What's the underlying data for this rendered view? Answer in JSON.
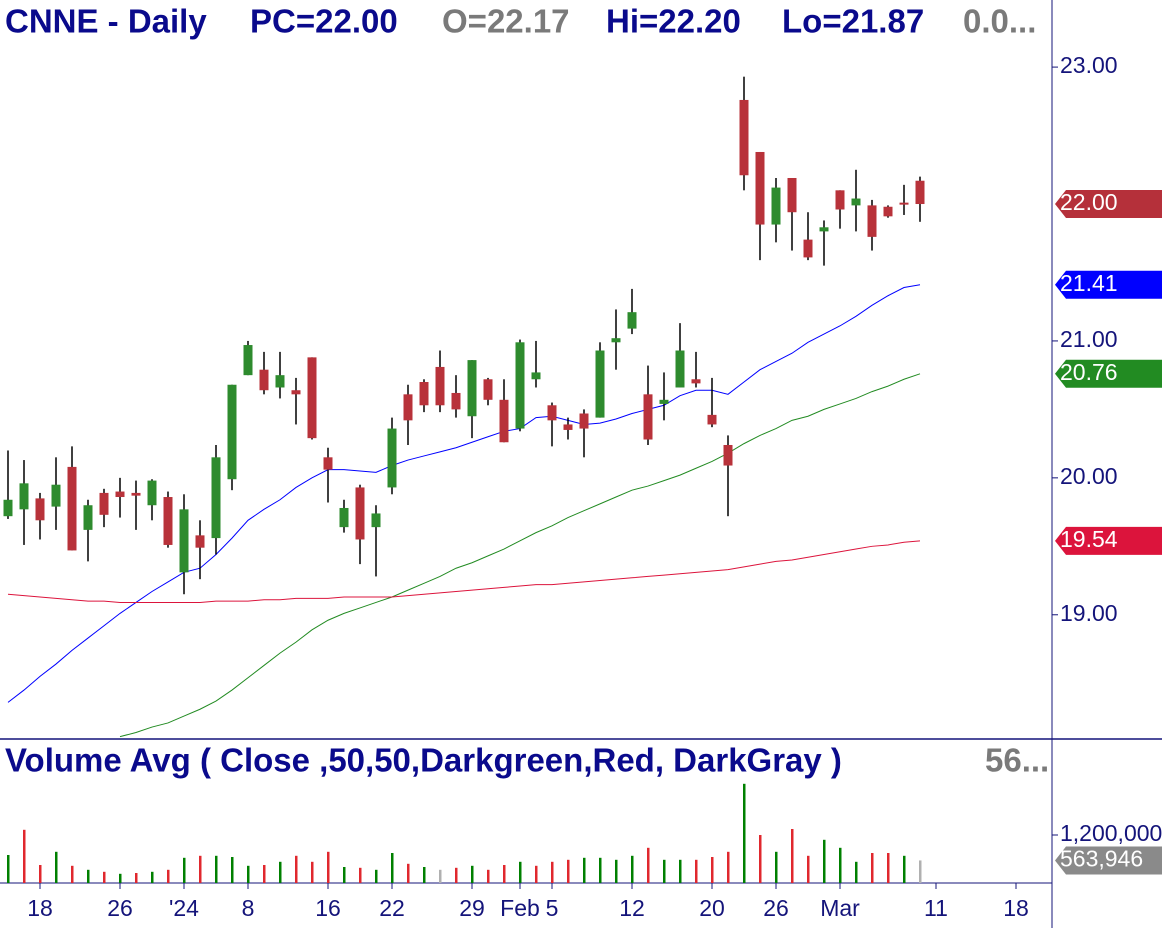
{
  "chart_data": {
    "type": "candlestick",
    "header": {
      "symbol": "CNNE - Daily",
      "prev_close": "PC=22.00",
      "open": "O=22.17",
      "high": "Hi=22.20",
      "low": "Lo=21.87",
      "change": "0.0..."
    },
    "categories": [
      null,
      null,
      "18",
      null,
      null,
      null,
      null,
      "26",
      null,
      null,
      null,
      "'24",
      null,
      null,
      null,
      "8",
      null,
      null,
      null,
      null,
      "16",
      null,
      null,
      null,
      "22",
      null,
      null,
      null,
      null,
      "29",
      null,
      null,
      "Feb",
      null,
      "5",
      null,
      null,
      null,
      null,
      "12",
      null,
      null,
      null,
      null,
      "20",
      null,
      null,
      null,
      "26",
      null,
      null,
      null,
      "Mar",
      null,
      null,
      null,
      null,
      null,
      "11",
      null,
      null,
      null,
      null,
      "18"
    ],
    "open": [
      19.72,
      19.77,
      19.85,
      19.79,
      20.08,
      19.62,
      19.89,
      19.9,
      19.89,
      19.8,
      19.86,
      19.31,
      19.58,
      19.56,
      19.99,
      20.75,
      20.79,
      20.66,
      20.64,
      20.88,
      20.15,
      19.64,
      19.93,
      19.64,
      19.93,
      20.61,
      20.7,
      20.81,
      20.62,
      20.45,
      20.72,
      20.57,
      20.36,
      20.72,
      20.53,
      20.39,
      20.47,
      20.44,
      20.99,
      21.09,
      20.61,
      20.54,
      20.66,
      20.72,
      20.46,
      20.24,
      22.76,
      22.38,
      21.85,
      22.19,
      21.74,
      21.8,
      22.1,
      21.99,
      21.99,
      21.98,
      22.01,
      22.17,
      null,
      null,
      null,
      null,
      null,
      null
    ],
    "high": [
      20.2,
      20.13,
      19.89,
      20.15,
      20.23,
      19.84,
      19.92,
      20.0,
      19.98,
      19.99,
      19.9,
      19.88,
      19.69,
      20.24,
      20.68,
      21.0,
      20.92,
      20.92,
      20.73,
      20.88,
      20.22,
      19.84,
      19.95,
      19.8,
      20.44,
      20.68,
      20.72,
      20.93,
      20.75,
      20.86,
      20.73,
      20.72,
      21.01,
      21.0,
      20.55,
      20.44,
      20.5,
      20.99,
      21.23,
      21.38,
      20.82,
      20.77,
      21.13,
      20.92,
      20.73,
      20.31,
      22.93,
      22.38,
      22.19,
      22.19,
      21.94,
      21.88,
      22.1,
      22.25,
      22.03,
      21.99,
      22.14,
      22.2,
      null,
      null,
      null,
      null,
      null,
      null
    ],
    "low": [
      19.7,
      19.51,
      19.55,
      19.62,
      19.47,
      19.39,
      19.64,
      19.71,
      19.62,
      19.69,
      19.49,
      19.15,
      19.26,
      19.44,
      19.91,
      20.75,
      20.61,
      20.58,
      20.39,
      20.28,
      19.82,
      19.6,
      19.37,
      19.28,
      19.88,
      20.24,
      20.48,
      20.48,
      20.44,
      20.29,
      20.53,
      20.26,
      20.34,
      20.66,
      20.23,
      20.28,
      20.15,
      20.44,
      20.79,
      21.05,
      20.24,
      20.42,
      20.66,
      20.66,
      20.37,
      19.72,
      22.1,
      21.59,
      21.72,
      21.66,
      21.59,
      21.55,
      21.82,
      21.8,
      21.66,
      21.9,
      21.92,
      21.87,
      null,
      null,
      null,
      null,
      null,
      null
    ],
    "close": [
      19.84,
      19.96,
      19.69,
      19.95,
      19.47,
      19.8,
      19.73,
      19.86,
      19.87,
      19.98,
      19.51,
      19.77,
      19.49,
      20.15,
      20.68,
      20.97,
      20.64,
      20.75,
      20.61,
      20.29,
      20.06,
      19.78,
      19.55,
      19.74,
      20.36,
      20.42,
      20.53,
      20.53,
      20.5,
      20.86,
      20.57,
      20.26,
      20.99,
      20.77,
      20.42,
      20.35,
      20.36,
      20.93,
      21.02,
      21.21,
      20.28,
      20.57,
      20.93,
      20.69,
      20.39,
      20.09,
      22.21,
      21.85,
      22.12,
      21.94,
      21.61,
      21.83,
      21.96,
      22.04,
      21.76,
      21.91,
      22.0,
      22.0,
      null,
      null,
      null,
      null,
      null,
      null
    ],
    "close_label": "22.00",
    "up_color": "#2e8b2e",
    "down_color": "#b8323a",
    "up_box_color": "#3a9a3a",
    "down_box_color": "#b5303a",
    "overlays": [
      {
        "color": "#0000ff",
        "values": [
          18.36,
          18.45,
          18.55,
          18.64,
          18.74,
          18.83,
          18.92,
          19.01,
          19.09,
          19.17,
          19.24,
          19.31,
          19.34,
          19.44,
          19.56,
          19.69,
          19.77,
          19.84,
          19.93,
          20.0,
          20.06,
          20.06,
          20.05,
          20.04,
          20.09,
          20.13,
          20.16,
          20.19,
          20.22,
          20.26,
          20.3,
          20.34,
          20.36,
          20.44,
          20.45,
          20.42,
          20.39,
          20.4,
          20.43,
          20.47,
          20.5,
          20.53,
          20.6,
          20.64,
          20.64,
          20.61,
          20.7,
          20.79,
          20.85,
          20.91,
          20.99,
          21.05,
          21.11,
          21.18,
          21.26,
          21.33,
          21.39,
          21.41,
          null,
          null,
          null,
          null,
          null,
          null
        ]
      },
      {
        "color": "#228b22",
        "values": [
          null,
          null,
          null,
          null,
          null,
          null,
          null,
          18.11,
          18.14,
          18.18,
          18.21,
          18.26,
          18.31,
          18.37,
          18.45,
          18.54,
          18.63,
          18.72,
          18.8,
          18.89,
          18.96,
          19.01,
          19.05,
          19.09,
          19.13,
          19.18,
          19.23,
          19.28,
          19.34,
          19.38,
          19.43,
          19.48,
          19.54,
          19.6,
          19.65,
          19.71,
          19.76,
          19.81,
          19.86,
          19.91,
          19.94,
          19.98,
          20.02,
          20.07,
          20.12,
          20.18,
          20.25,
          20.31,
          20.36,
          20.42,
          20.45,
          20.5,
          20.54,
          20.58,
          20.63,
          20.67,
          20.72,
          20.76,
          null,
          null,
          null,
          null,
          null,
          null
        ]
      },
      {
        "color": "#dc143c",
        "values": [
          19.15,
          19.14,
          19.13,
          19.12,
          19.11,
          19.1,
          19.1,
          19.09,
          19.09,
          19.09,
          19.09,
          19.09,
          19.09,
          19.1,
          19.1,
          19.1,
          19.11,
          19.11,
          19.12,
          19.12,
          19.12,
          19.13,
          19.13,
          19.13,
          19.13,
          19.14,
          19.15,
          19.16,
          19.17,
          19.18,
          19.19,
          19.2,
          19.21,
          19.22,
          19.22,
          19.23,
          19.24,
          19.25,
          19.26,
          19.27,
          19.28,
          19.29,
          19.3,
          19.31,
          19.32,
          19.33,
          19.35,
          19.37,
          19.39,
          19.4,
          19.42,
          19.44,
          19.46,
          19.48,
          19.5,
          19.51,
          19.53,
          19.54,
          null,
          null,
          null,
          null,
          null,
          null
        ]
      }
    ],
    "ylim": [
      18.1,
      23.49
    ],
    "yticks": [
      {
        "value": 19,
        "label": "19.00"
      },
      {
        "value": 20,
        "label": "20.00"
      },
      {
        "value": 21,
        "label": "21.00"
      },
      {
        "value": 23,
        "label": "23.00"
      }
    ],
    "volume": {
      "type": "bar",
      "title": "Volume Avg ( Close ,50,50,Darkgreen,Red, DarkGray )",
      "title_value": "56...",
      "values": [
        700000,
        1330000,
        450000,
        780000,
        430000,
        330000,
        280000,
        230000,
        250000,
        280000,
        330000,
        630000,
        680000,
        680000,
        650000,
        430000,
        450000,
        530000,
        680000,
        530000,
        780000,
        400000,
        380000,
        330000,
        750000,
        480000,
        400000,
        330000,
        380000,
        430000,
        330000,
        450000,
        530000,
        430000,
        530000,
        580000,
        630000,
        630000,
        580000,
        680000,
        880000,
        580000,
        580000,
        580000,
        650000,
        780000,
        2480000,
        1200000,
        780000,
        1350000,
        680000,
        1080000,
        880000,
        530000,
        750000,
        750000,
        680000,
        563946,
        null,
        null,
        null,
        null,
        null,
        null
      ],
      "colors": [
        "#008000",
        "#e0282e",
        "#e0282e",
        "#008000",
        "#e0282e",
        "#008000",
        "#e0282e",
        "#008000",
        "#e0282e",
        "#008000",
        "#e0282e",
        "#008000",
        "#e0282e",
        "#008000",
        "#008000",
        "#008000",
        "#e0282e",
        "#008000",
        "#e0282e",
        "#e0282e",
        "#e0282e",
        "#008000",
        "#e0282e",
        "#008000",
        "#008000",
        "#e0282e",
        "#008000",
        "#b0b0b0",
        "#e0282e",
        "#008000",
        "#e0282e",
        "#e0282e",
        "#008000",
        "#e0282e",
        "#e0282e",
        "#e0282e",
        "#008000",
        "#008000",
        "#008000",
        "#008000",
        "#e0282e",
        "#008000",
        "#008000",
        "#e0282e",
        "#e0282e",
        "#e0282e",
        "#008000",
        "#e0282e",
        "#008000",
        "#e0282e",
        "#e0282e",
        "#008000",
        "#008000",
        "#008000",
        "#e0282e",
        "#e0282e",
        "#008000",
        "#b0b0b0",
        null,
        null,
        null,
        null,
        null,
        null
      ],
      "last_label": "563,946",
      "box_color": "#8a8a8a",
      "ylim": [
        0,
        3575000
      ],
      "yticks": [
        {
          "value": 1200000,
          "label": "1,200,000"
        }
      ]
    }
  }
}
